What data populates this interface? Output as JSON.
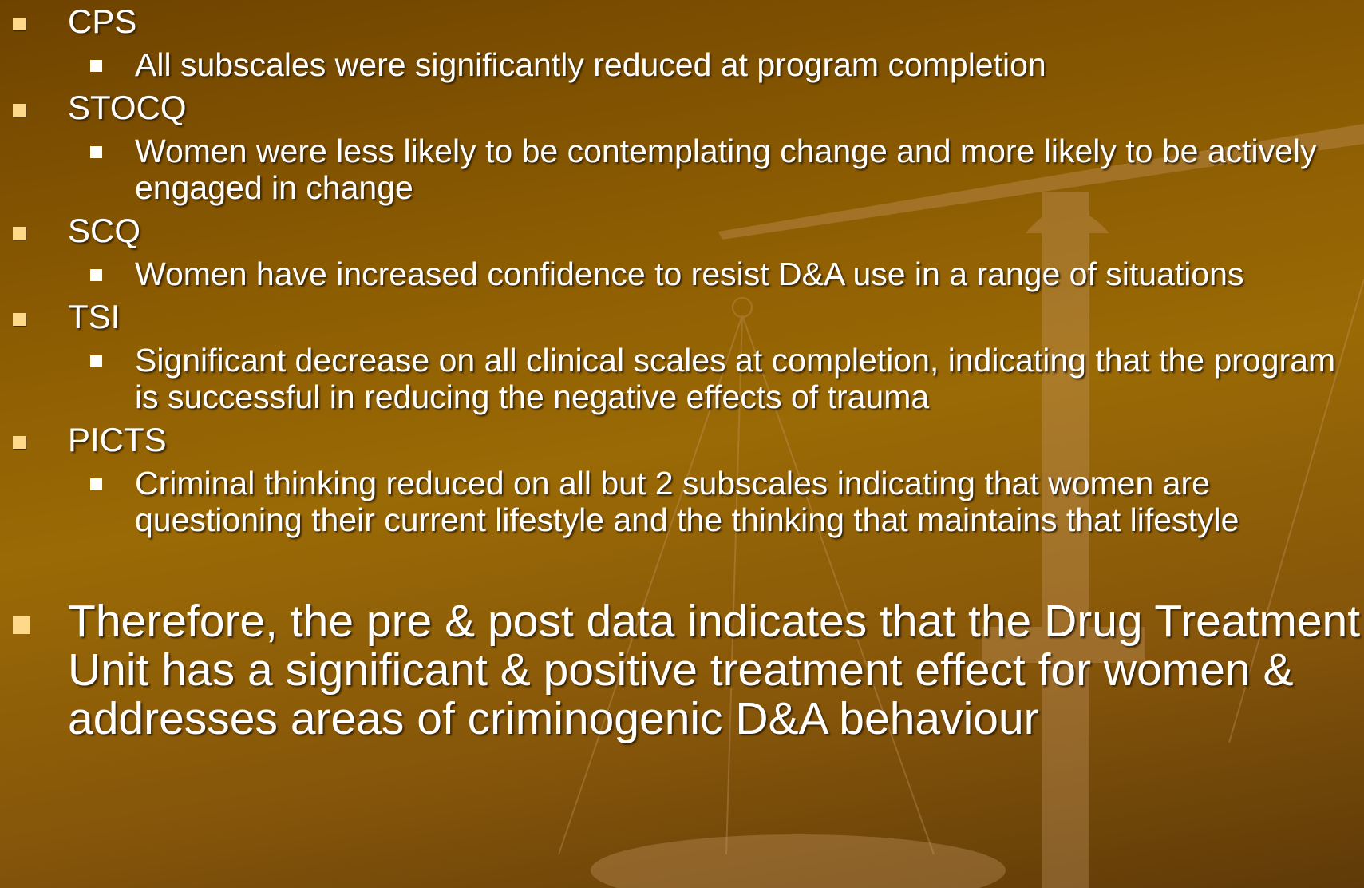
{
  "items": [
    {
      "heading": "CPS",
      "detail": "All subscales were significantly reduced at program completion"
    },
    {
      "heading": "STOCQ",
      "detail": "Women were less likely to be contemplating change and more likely to be actively engaged in change"
    },
    {
      "heading": "SCQ",
      "detail": "Women have increased confidence to resist D&A use in a range of situations"
    },
    {
      "heading": "TSI",
      "detail": "Significant decrease on all clinical scales at completion, indicating that the program is successful in reducing the negative effects of trauma"
    },
    {
      "heading": "PICTS",
      "detail": "Criminal thinking reduced on all but 2 subscales indicating that women are questioning their current lifestyle and the thinking that maintains that lifestyle"
    }
  ],
  "conclusion": "Therefore, the pre & post data indicates that the Drug Treatment Unit has a significant & positive treatment effect for women & addresses areas of criminogenic D&A behaviour"
}
